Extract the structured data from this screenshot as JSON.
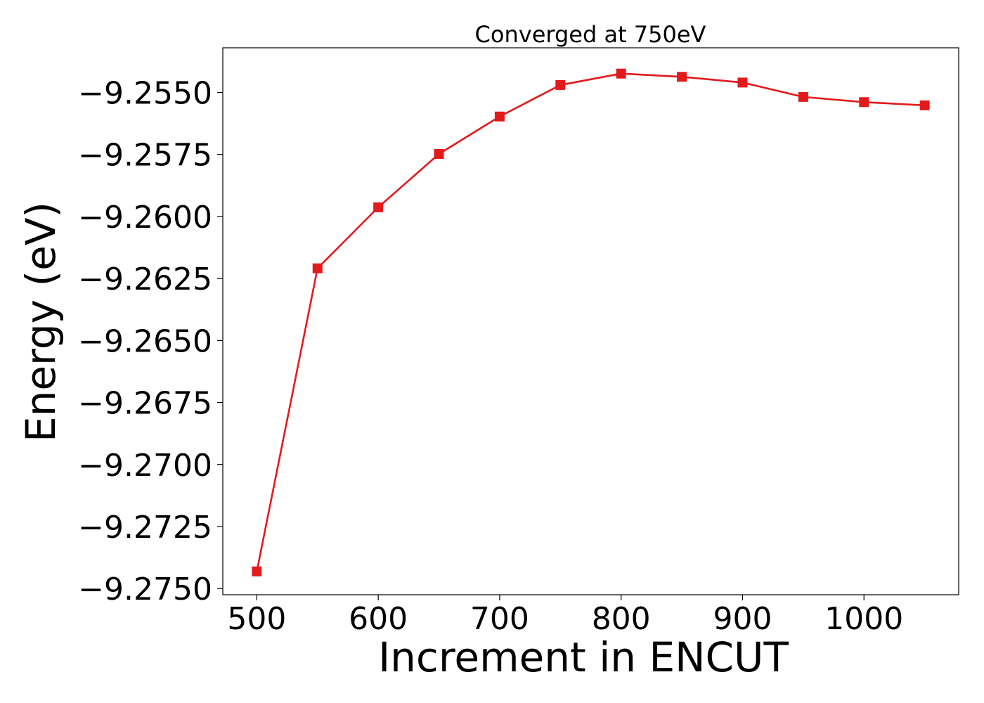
{
  "chart_data": {
    "type": "line",
    "title": "Converged at 750eV",
    "xlabel": "Increment in ENCUT",
    "ylabel": "Energy (eV)",
    "xlim": [
      472,
      1078
    ],
    "ylim": [
      -9.27525,
      -9.2532
    ],
    "grid": false,
    "x_ticks": [
      500,
      600,
      700,
      800,
      900,
      1000
    ],
    "x_tick_labels": [
      "500",
      "600",
      "700",
      "800",
      "900",
      "1000"
    ],
    "y_ticks": [
      -9.255,
      -9.2575,
      -9.26,
      -9.2625,
      -9.265,
      -9.2675,
      -9.27,
      -9.2725,
      -9.275
    ],
    "y_tick_labels": [
      "−9.2550",
      "−9.2575",
      "−9.2600",
      "−9.2625",
      "−9.2650",
      "−9.2675",
      "−9.2700",
      "−9.2725",
      "−9.2750"
    ],
    "series": [
      {
        "color": "#e31a1c",
        "marker": "square",
        "x": [
          500,
          550,
          600,
          650,
          700,
          750,
          800,
          850,
          900,
          950,
          1000,
          1050
        ],
        "y": [
          -9.27431,
          -9.26209,
          -9.25963,
          -9.25748,
          -9.25597,
          -9.2547,
          -9.25424,
          -9.25437,
          -9.2546,
          -9.25518,
          -9.25539,
          -9.25552
        ]
      }
    ]
  }
}
